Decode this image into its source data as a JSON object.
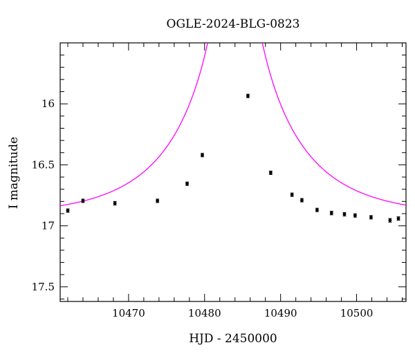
{
  "chart_data": {
    "type": "scatter",
    "title": "OGLE-2024-BLG-0823",
    "xlabel": "HJD - 2450000",
    "ylabel": "I magnitude",
    "xlim": [
      10461.0,
      10506.5
    ],
    "ylim": [
      17.62,
      15.5
    ],
    "y_inverted": true,
    "x_ticks": [
      10470,
      10480,
      10490,
      10500
    ],
    "y_ticks": [
      16,
      16.5,
      17,
      17.5
    ],
    "x_tick_labels": [
      "10470",
      "10480",
      "10490",
      "10500"
    ],
    "y_tick_labels": [
      "16",
      "16.5",
      "17",
      "17.5"
    ],
    "grid": false,
    "series": [
      {
        "type": "points_with_errorbars",
        "color": "#000000",
        "points": [
          {
            "x": 10462.0,
            "y": 16.875,
            "err": 0.01
          },
          {
            "x": 10464.0,
            "y": 16.795,
            "err": 0.01
          },
          {
            "x": 10468.2,
            "y": 16.815,
            "err": 0.015
          },
          {
            "x": 10473.8,
            "y": 16.795,
            "err": 0.012
          },
          {
            "x": 10477.7,
            "y": 16.655,
            "err": 0.012
          },
          {
            "x": 10479.7,
            "y": 16.42,
            "err": 0.012
          },
          {
            "x": 10485.7,
            "y": 15.935,
            "err": 0.01
          },
          {
            "x": 10488.7,
            "y": 16.565,
            "err": 0.01
          },
          {
            "x": 10491.5,
            "y": 16.745,
            "err": 0.01
          },
          {
            "x": 10492.8,
            "y": 16.79,
            "err": 0.012
          },
          {
            "x": 10494.8,
            "y": 16.87,
            "err": 0.01
          },
          {
            "x": 10496.7,
            "y": 16.895,
            "err": 0.015
          },
          {
            "x": 10498.4,
            "y": 16.905,
            "err": 0.012
          },
          {
            "x": 10499.8,
            "y": 16.915,
            "err": 0.01
          },
          {
            "x": 10501.9,
            "y": 16.93,
            "err": 0.012
          },
          {
            "x": 10504.4,
            "y": 16.955,
            "err": 0.015
          },
          {
            "x": 10505.5,
            "y": 16.94,
            "err": 0.012
          }
        ]
      },
      {
        "type": "model_curve",
        "color": "#ff00ff",
        "model": {
          "t0": 10484.0,
          "u0": 0.005,
          "tE": 13.0,
          "base_mag": 16.925
        }
      }
    ]
  }
}
